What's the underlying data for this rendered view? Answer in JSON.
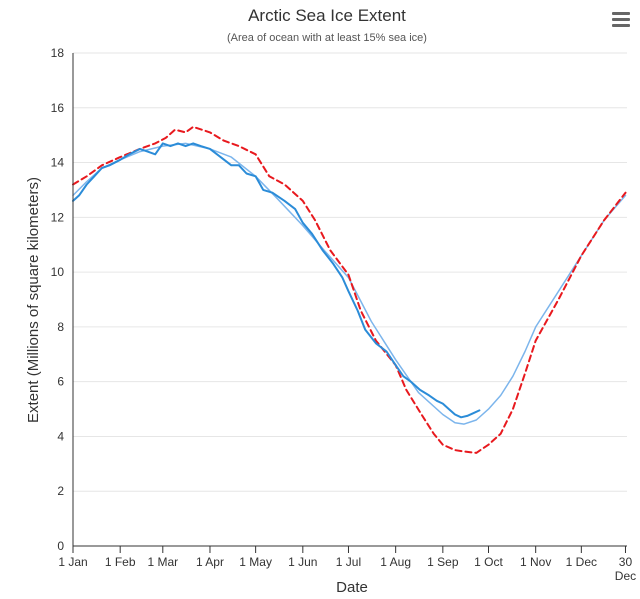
{
  "chart_data": {
    "type": "line",
    "title": "Arctic Sea Ice Extent",
    "subtitle": "(Area of ocean with at least 15% sea ice)",
    "xlabel": "Date",
    "ylabel": "Extent (Millions of square kilometers)",
    "ylim": [
      0,
      18
    ],
    "yticks": [
      0,
      2,
      4,
      6,
      8,
      10,
      12,
      14,
      16,
      18
    ],
    "xlim": [
      1,
      365
    ],
    "xticks": [
      {
        "day": 1,
        "label": "1 Jan"
      },
      {
        "day": 32,
        "label": "1 Feb"
      },
      {
        "day": 60,
        "label": "1 Mar"
      },
      {
        "day": 91,
        "label": "1 Apr"
      },
      {
        "day": 121,
        "label": "1 May"
      },
      {
        "day": 152,
        "label": "1 Jun"
      },
      {
        "day": 182,
        "label": "1 Jul"
      },
      {
        "day": 213,
        "label": "1 Aug"
      },
      {
        "day": 244,
        "label": "1 Sep"
      },
      {
        "day": 274,
        "label": "1 Oct"
      },
      {
        "day": 305,
        "label": "1 Nov"
      },
      {
        "day": 335,
        "label": "1 Dec"
      },
      {
        "day": 364,
        "label": "30",
        "label2": "Dec"
      }
    ],
    "grid": "horizontal",
    "series": [
      {
        "color": "#7cb5ec",
        "dash": "solid",
        "width": 1.5,
        "x": [
          1,
          10,
          20,
          32,
          45,
          60,
          75,
          91,
          105,
          121,
          135,
          152,
          166,
          182,
          197,
          213,
          228,
          244,
          252,
          258,
          266,
          274,
          282,
          290,
          298,
          305,
          320,
          335,
          350,
          364
        ],
        "y": [
          12.8,
          13.3,
          13.8,
          14.1,
          14.4,
          14.6,
          14.7,
          14.5,
          14.2,
          13.5,
          12.7,
          11.7,
          10.8,
          9.8,
          8.2,
          6.8,
          5.6,
          4.8,
          4.5,
          4.45,
          4.6,
          5.0,
          5.5,
          6.2,
          7.1,
          8.0,
          9.3,
          10.6,
          11.9,
          12.8
        ]
      },
      {
        "color": "#e8191e",
        "dash": "dashed",
        "width": 2,
        "x": [
          1,
          10,
          20,
          32,
          45,
          55,
          62,
          68,
          75,
          80,
          91,
          100,
          110,
          121,
          130,
          140,
          152,
          160,
          170,
          182,
          190,
          200,
          213,
          220,
          230,
          238,
          244,
          252,
          258,
          266,
          274,
          282,
          290,
          298,
          305,
          320,
          335,
          350,
          364
        ],
        "y": [
          13.2,
          13.5,
          13.9,
          14.2,
          14.5,
          14.7,
          14.9,
          15.2,
          15.1,
          15.3,
          15.1,
          14.8,
          14.6,
          14.3,
          13.5,
          13.2,
          12.6,
          11.9,
          10.8,
          9.9,
          8.6,
          7.5,
          6.6,
          5.7,
          4.8,
          4.1,
          3.7,
          3.5,
          3.45,
          3.4,
          3.7,
          4.1,
          5.0,
          6.3,
          7.5,
          9.0,
          10.6,
          11.9,
          12.9
        ]
      },
      {
        "color": "#2b8cd8",
        "dash": "solid",
        "width": 2,
        "x": [
          1,
          5,
          10,
          15,
          20,
          25,
          32,
          38,
          45,
          50,
          55,
          60,
          65,
          70,
          75,
          80,
          85,
          91,
          98,
          105,
          110,
          115,
          121,
          126,
          132,
          140,
          147,
          152,
          158,
          165,
          172,
          178,
          182,
          188,
          193,
          200,
          207,
          213,
          218,
          223,
          229,
          235,
          240,
          244,
          248,
          252,
          256,
          260,
          264,
          268
        ],
        "y": [
          12.6,
          12.8,
          13.2,
          13.5,
          13.8,
          13.9,
          14.1,
          14.3,
          14.5,
          14.4,
          14.3,
          14.7,
          14.6,
          14.7,
          14.6,
          14.7,
          14.6,
          14.5,
          14.2,
          13.9,
          13.9,
          13.6,
          13.5,
          13.0,
          12.9,
          12.6,
          12.3,
          11.8,
          11.4,
          10.8,
          10.3,
          9.8,
          9.3,
          8.6,
          7.9,
          7.4,
          7.1,
          6.6,
          6.2,
          6.0,
          5.7,
          5.5,
          5.3,
          5.2,
          5.0,
          4.8,
          4.7,
          4.75,
          4.85,
          4.95
        ]
      }
    ]
  },
  "menu_icon": "hamburger-menu-icon"
}
